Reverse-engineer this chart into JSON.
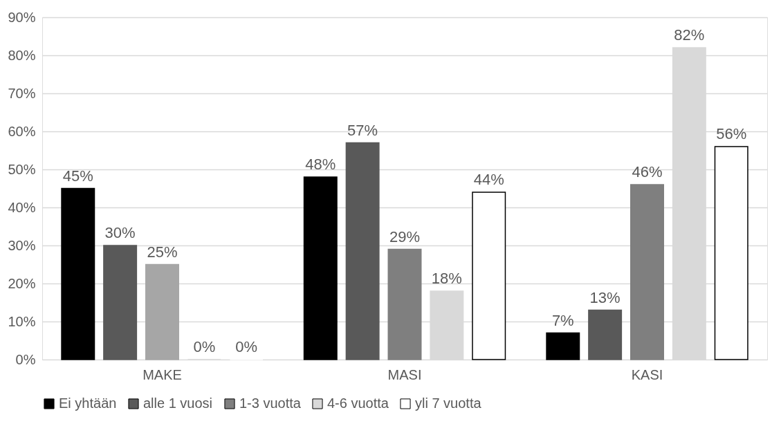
{
  "chart_data": {
    "type": "bar",
    "categories": [
      "MAKE",
      "MASI",
      "KASI"
    ],
    "series": [
      {
        "name": "Ei yhtään",
        "color": "#000000",
        "values": [
          45,
          48,
          7
        ],
        "value_labels": [
          "45%",
          "48%",
          "7%"
        ]
      },
      {
        "name": "alle 1 vuosi",
        "color": "#595959",
        "values": [
          30,
          57,
          13
        ],
        "value_labels": [
          "30%",
          "57%",
          "13%"
        ]
      },
      {
        "name": "1-3 vuotta",
        "color": "#7f7f7f",
        "colors": [
          "#a6a6a6",
          "#7f7f7f",
          "#7f7f7f"
        ],
        "values": [
          25,
          29,
          46
        ],
        "value_labels": [
          "25%",
          "29%",
          "46%"
        ]
      },
      {
        "name": "4-6 vuotta",
        "color": "#d9d9d9",
        "values": [
          0,
          18,
          82
        ],
        "value_labels": [
          "0%",
          "18%",
          "82%"
        ]
      },
      {
        "name": "yli 7 vuotta",
        "color": "#ffffff",
        "values": [
          0,
          44,
          56
        ],
        "value_labels": [
          "0%",
          "44%",
          "56%"
        ]
      }
    ],
    "ylim": [
      0,
      90
    ],
    "yticks": [
      {
        "value": 0,
        "label": "0%"
      },
      {
        "value": 10,
        "label": "10%"
      },
      {
        "value": 20,
        "label": "20%"
      },
      {
        "value": 30,
        "label": "30%"
      },
      {
        "value": 40,
        "label": "40%"
      },
      {
        "value": 50,
        "label": "50%"
      },
      {
        "value": 60,
        "label": "60%"
      },
      {
        "value": 70,
        "label": "70%"
      },
      {
        "value": 80,
        "label": "80%"
      },
      {
        "value": 90,
        "label": "90%"
      }
    ],
    "grid": "y",
    "legend": "bottom"
  }
}
